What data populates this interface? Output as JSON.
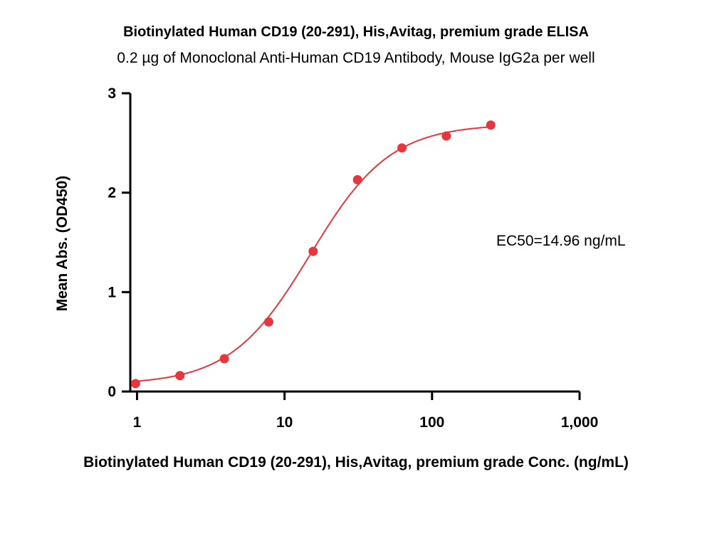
{
  "chart_data": {
    "type": "scatter",
    "title": "Biotinylated Human CD19 (20-291), His,Avitag, premium grade ELISA",
    "subtitle": "0.2 µg of Monoclonal Anti-Human CD19 Antibody, Mouse IgG2a per well",
    "xlabel": "Biotinylated Human CD19 (20-291), His,Avitag, premium grade Conc. (ng/mL)",
    "ylabel": "Mean Abs. (OD450)",
    "xscale": "log",
    "xlim": [
      0.9,
      1000
    ],
    "ylim": [
      0,
      3
    ],
    "x_ticks": [
      1,
      10,
      100,
      1000
    ],
    "x_tick_labels": [
      "1",
      "10",
      "100",
      "1,000"
    ],
    "y_ticks": [
      0,
      1,
      2,
      3
    ],
    "y_tick_labels": [
      "0",
      "1",
      "2",
      "3"
    ],
    "grid": false,
    "color": "#e8363d",
    "series": [
      {
        "x": [
          0.977,
          1.953,
          3.906,
          7.813,
          15.625,
          31.25,
          62.5,
          125,
          250
        ],
        "y": [
          0.08,
          0.16,
          0.33,
          0.7,
          1.41,
          2.13,
          2.45,
          2.57,
          2.68
        ]
      }
    ],
    "fit": {
      "bottom": 0.07,
      "top": 2.69,
      "ec50": 14.96,
      "hill": 1.6
    },
    "annotations": [
      "EC50=14.96 ng/mL"
    ]
  }
}
